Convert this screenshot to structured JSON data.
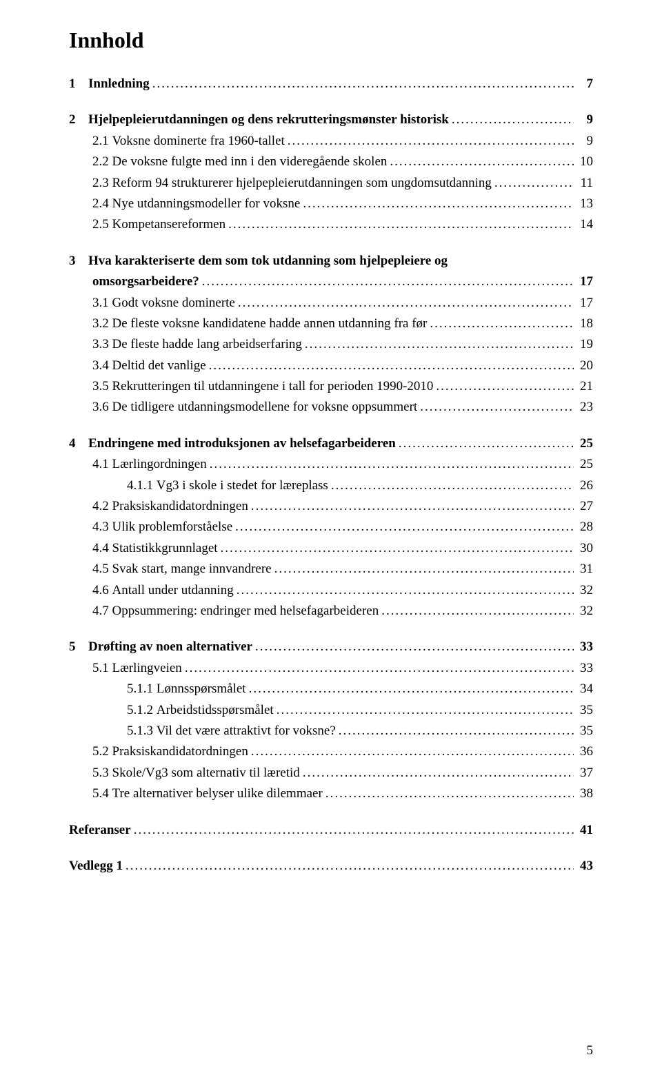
{
  "title": "Innhold",
  "pageNumber": "5",
  "sections": [
    {
      "num": "1",
      "title": "Innledning",
      "page": "7",
      "children": []
    },
    {
      "num": "2",
      "title": "Hjelpepleierutdanningen og dens rekrutteringsmønster historisk",
      "page": "9",
      "children": [
        {
          "sub": "2.1",
          "title": "Voksne dominerte fra 1960-tallet",
          "page": "9"
        },
        {
          "sub": "2.2",
          "title": "De voksne fulgte med inn i den videregående skolen",
          "page": "10"
        },
        {
          "sub": "2.3",
          "title": "Reform 94 strukturerer hjelpepleierutdanningen som ungdomsutdanning",
          "page": "11"
        },
        {
          "sub": "2.4",
          "title": "Nye utdanningsmodeller for voksne",
          "page": "13"
        },
        {
          "sub": "2.5",
          "title": "Kompetansereformen",
          "page": "14"
        }
      ]
    },
    {
      "num": "3",
      "title_line1": "Hva karakteriserte dem som tok utdanning som hjelpepleiere og",
      "title_line2": "omsorgsarbeidere?",
      "page": "17",
      "children": [
        {
          "sub": "3.1",
          "title": "Godt voksne dominerte",
          "page": "17"
        },
        {
          "sub": "3.2",
          "title": "De fleste voksne kandidatene hadde annen utdanning fra før",
          "page": "18"
        },
        {
          "sub": "3.3",
          "title": "De fleste hadde lang arbeidserfaring",
          "page": "19"
        },
        {
          "sub": "3.4",
          "title": "Deltid det vanlige",
          "page": "20"
        },
        {
          "sub": "3.5",
          "title": "Rekrutteringen til utdanningene i tall for perioden 1990-2010",
          "page": "21"
        },
        {
          "sub": "3.6",
          "title": "De tidligere utdanningsmodellene for voksne oppsummert",
          "page": "23"
        }
      ]
    },
    {
      "num": "4",
      "title": "Endringene med introduksjonen av helsefagarbeideren",
      "page": "25",
      "children": [
        {
          "sub": "4.1",
          "title": "Lærlingordningen",
          "page": "25",
          "subchildren": [
            {
              "sub": "4.1.1",
              "title": "Vg3 i skole i stedet for læreplass",
              "page": "26"
            }
          ]
        },
        {
          "sub": "4.2",
          "title": "Praksiskandidatordningen",
          "page": "27"
        },
        {
          "sub": "4.3",
          "title": "Ulik problemforståelse",
          "page": "28"
        },
        {
          "sub": "4.4",
          "title": "Statistikkgrunnlaget",
          "page": "30"
        },
        {
          "sub": "4.5",
          "title": "Svak start, mange innvandrere",
          "page": "31"
        },
        {
          "sub": "4.6",
          "title": "Antall under utdanning",
          "page": "32"
        },
        {
          "sub": "4.7",
          "title": "Oppsummering: endringer med helsefagarbeideren",
          "page": "32"
        }
      ]
    },
    {
      "num": "5",
      "title": "Drøfting av noen alternativer",
      "page": "33",
      "children": [
        {
          "sub": "5.1",
          "title": "Lærlingveien",
          "page": "33",
          "subchildren": [
            {
              "sub": "5.1.1",
              "title": "Lønnsspørsmålet",
              "page": "34"
            },
            {
              "sub": "5.1.2",
              "title": "Arbeidstidsspørsmålet",
              "page": "35"
            },
            {
              "sub": "5.1.3",
              "title": "Vil det være attraktivt for voksne?",
              "page": "35"
            }
          ]
        },
        {
          "sub": "5.2",
          "title": "Praksiskandidatordningen",
          "page": "36"
        },
        {
          "sub": "5.3",
          "title": "Skole/Vg3 som alternativ til læretid",
          "page": "37"
        },
        {
          "sub": "5.4",
          "title": "Tre alternativer belyser ulike dilemmaer",
          "page": "38"
        }
      ]
    }
  ],
  "tail": [
    {
      "title": "Referanser",
      "page": "41"
    },
    {
      "title": "Vedlegg 1",
      "page": "43"
    }
  ]
}
